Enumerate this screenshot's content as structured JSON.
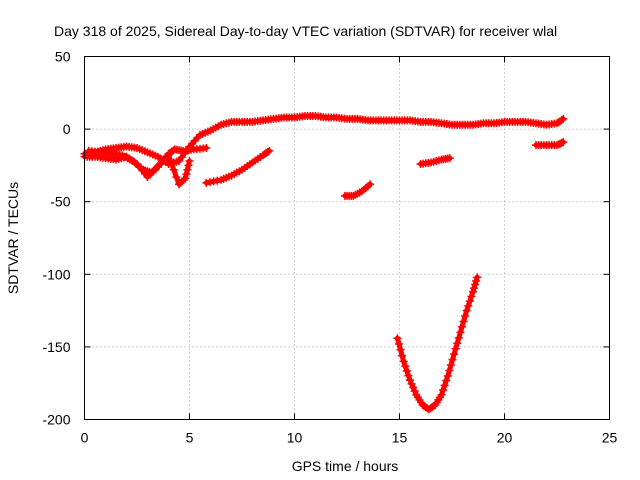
{
  "chart_data": {
    "type": "scatter",
    "title": "Day 318 of 2025, Sidereal Day-to-day VTEC variation (SDTVAR) for receiver wlal",
    "xlabel": "GPS time / hours",
    "ylabel": "SDTVAR / TECUs",
    "xlim": [
      0,
      25
    ],
    "ylim": [
      -200,
      50
    ],
    "xticks": [
      0,
      5,
      10,
      15,
      20,
      25
    ],
    "yticks": [
      50,
      0,
      -50,
      -100,
      -150,
      -200
    ],
    "grid": true,
    "marker": "+",
    "color": "#ff0000",
    "series": [
      {
        "name": "main-track",
        "points": [
          [
            0,
            -17
          ],
          [
            0.5,
            -16
          ],
          [
            1,
            -14
          ],
          [
            1.5,
            -13
          ],
          [
            2,
            -12
          ],
          [
            2.5,
            -13
          ],
          [
            3,
            -16
          ],
          [
            3.5,
            -19
          ],
          [
            4,
            -24
          ],
          [
            4.5,
            -22
          ],
          [
            5,
            -12
          ],
          [
            5.5,
            -4
          ],
          [
            6,
            -1
          ],
          [
            6.5,
            3
          ],
          [
            7,
            5
          ],
          [
            7.5,
            5
          ],
          [
            8,
            5
          ],
          [
            8.5,
            6
          ],
          [
            9,
            7
          ],
          [
            9.5,
            8
          ],
          [
            10,
            8
          ],
          [
            10.5,
            9
          ],
          [
            11,
            9
          ],
          [
            11.5,
            8
          ],
          [
            12,
            8
          ],
          [
            12.5,
            7
          ],
          [
            13,
            7
          ],
          [
            13.5,
            6
          ],
          [
            14,
            6
          ],
          [
            14.5,
            6
          ],
          [
            15,
            6
          ],
          [
            15.5,
            6
          ],
          [
            16,
            5
          ],
          [
            16.5,
            5
          ],
          [
            17,
            4
          ],
          [
            17.5,
            3
          ],
          [
            18,
            3
          ],
          [
            18.5,
            3
          ],
          [
            19,
            4
          ],
          [
            19.5,
            4
          ],
          [
            20,
            5
          ],
          [
            20.5,
            5
          ],
          [
            21,
            5
          ],
          [
            21.5,
            4
          ],
          [
            22,
            3
          ],
          [
            22.5,
            4
          ],
          [
            22.8,
            7
          ]
        ]
      },
      {
        "name": "lower-wave",
        "points": [
          [
            0,
            -19
          ],
          [
            0.5,
            -19
          ],
          [
            1,
            -20
          ],
          [
            1.5,
            -21
          ],
          [
            2,
            -19
          ],
          [
            2.5,
            -24
          ],
          [
            3,
            -33
          ],
          [
            3.5,
            -26
          ],
          [
            4,
            -18
          ],
          [
            4.5,
            -38
          ],
          [
            4.8,
            -34
          ],
          [
            5,
            -22
          ]
        ]
      },
      {
        "name": "cross-wave",
        "points": [
          [
            0.2,
            -15
          ],
          [
            0.8,
            -16
          ],
          [
            1.3,
            -17
          ],
          [
            1.8,
            -18
          ],
          [
            2.3,
            -22
          ],
          [
            2.8,
            -28
          ],
          [
            3.2,
            -30
          ],
          [
            3.6,
            -24
          ],
          [
            4,
            -17
          ],
          [
            4.3,
            -14
          ],
          [
            4.7,
            -15
          ],
          [
            5.2,
            -14
          ],
          [
            5.8,
            -13
          ]
        ]
      },
      {
        "name": "rising-arc",
        "points": [
          [
            5.8,
            -37
          ],
          [
            6.5,
            -35
          ],
          [
            7,
            -32
          ],
          [
            7.5,
            -28
          ],
          [
            8,
            -23
          ],
          [
            8.5,
            -18
          ],
          [
            8.8,
            -15
          ]
        ]
      },
      {
        "name": "short-arc-1",
        "points": [
          [
            12.4,
            -46
          ],
          [
            12.8,
            -46
          ],
          [
            13.2,
            -43
          ],
          [
            13.6,
            -38
          ]
        ]
      },
      {
        "name": "short-arc-2",
        "points": [
          [
            16,
            -24
          ],
          [
            16.5,
            -23
          ],
          [
            17,
            -21
          ],
          [
            17.4,
            -20
          ]
        ]
      },
      {
        "name": "short-arc-3",
        "points": [
          [
            21.5,
            -11
          ],
          [
            22,
            -11
          ],
          [
            22.5,
            -11
          ],
          [
            22.8,
            -9
          ]
        ]
      },
      {
        "name": "deep-dip",
        "points": [
          [
            14.9,
            -144
          ],
          [
            15.2,
            -160
          ],
          [
            15.5,
            -173
          ],
          [
            15.8,
            -183
          ],
          [
            16.1,
            -190
          ],
          [
            16.4,
            -193
          ],
          [
            16.7,
            -190
          ],
          [
            17,
            -183
          ],
          [
            17.3,
            -170
          ],
          [
            17.6,
            -155
          ],
          [
            17.9,
            -140
          ],
          [
            18.2,
            -125
          ],
          [
            18.5,
            -112
          ],
          [
            18.7,
            -102
          ]
        ]
      }
    ]
  }
}
